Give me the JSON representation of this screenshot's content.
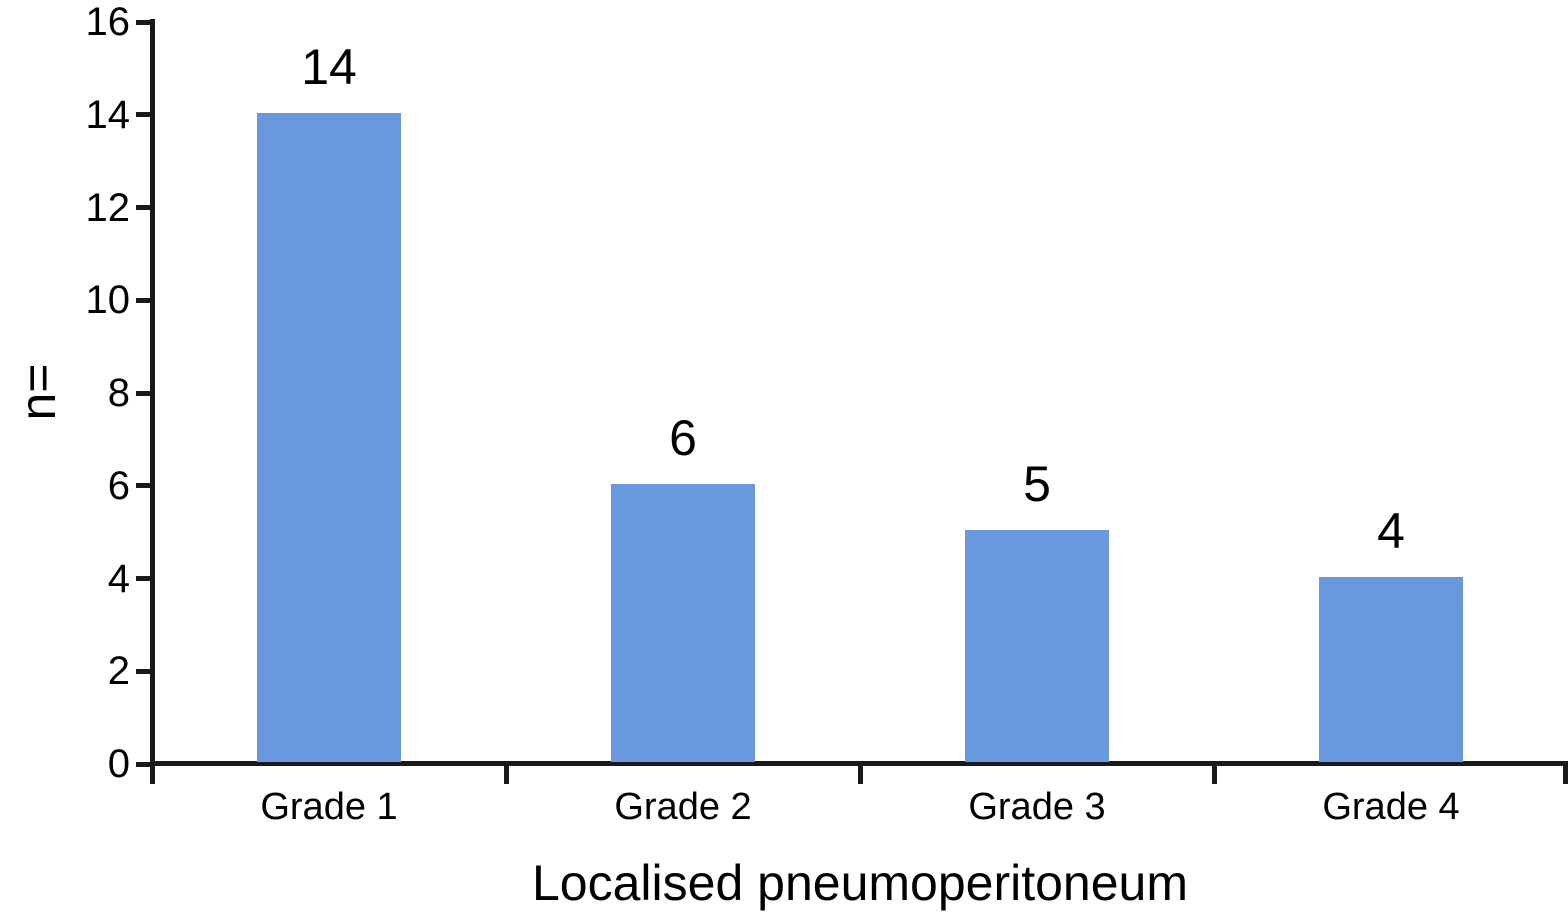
{
  "chart_data": {
    "type": "bar",
    "categories": [
      "Grade 1",
      "Grade 2",
      "Grade 3",
      "Grade 4"
    ],
    "values": [
      14,
      6,
      5,
      4
    ],
    "bar_value_labels": [
      "14",
      "6",
      "5",
      "4"
    ],
    "title": "",
    "xlabel": "Localised pneumoperitoneum",
    "ylabel": "n=",
    "ylim": [
      0,
      16
    ],
    "yticks": [
      0,
      2,
      4,
      6,
      8,
      10,
      12,
      14,
      16
    ],
    "grid": false,
    "legend_position": "none",
    "bar_color": "#6998DE",
    "axis_color": "#1a1a1a",
    "text_color": "#000000"
  }
}
